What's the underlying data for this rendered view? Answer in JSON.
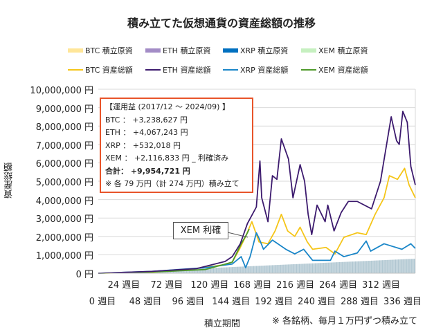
{
  "chart_data": {
    "type": "line",
    "title": "積み立てた仮想通貨の資産総額の推移",
    "xlabel": "積立期間",
    "ylabel": "資産総額",
    "note": "※ 各銘柄、毎月１万円ずつ積み立て",
    "ylim": [
      0,
      10000000
    ],
    "xlim": [
      0,
      355
    ],
    "grid": true,
    "legend_position": "top",
    "y_ticks": [
      "0 円",
      "1,000,000 円",
      "2,000,000 円",
      "3,000,000 円",
      "4,000,000 円",
      "5,000,000 円",
      "6,000,000 円",
      "7,000,000 円",
      "8,000,000 円",
      "9,000,000 円",
      "10,000,000 円"
    ],
    "x_ticks_upper": [
      "24 週目",
      "72 週目",
      "120 週目",
      "168 週目",
      "216 週目",
      "264 週目",
      "312 週目"
    ],
    "x_ticks_lower": [
      "0 週目",
      "48 週目",
      "96 週目",
      "144 週目",
      "192 週目",
      "240 週目",
      "288 週目",
      "336 週目"
    ],
    "legend": {
      "principal": [
        {
          "label": "BTC  積立原資",
          "color": "#ffe699"
        },
        {
          "label": "ETH  積立原資",
          "color": "#a38cc6"
        },
        {
          "label": "XRP  積立原資",
          "color": "#0070c0"
        },
        {
          "label": "XEM  積立原資",
          "color": "#c6f0c0"
        }
      ],
      "total": [
        {
          "label": "BTC  資産総額",
          "color": "#f5c518"
        },
        {
          "label": "ETH  資産総額",
          "color": "#3c1a6e"
        },
        {
          "label": "XRP  資産総額",
          "color": "#1a86c8"
        },
        {
          "label": "XEM  資産総額",
          "color": "#4e9a2a"
        }
      ]
    },
    "principal_series": {
      "color": "#b8cdd6",
      "points": [
        [
          0,
          0
        ],
        [
          170,
          380000
        ],
        [
          355,
          790000
        ]
      ]
    },
    "series": [
      {
        "name": "BTC",
        "color": "#f5c518",
        "points": [
          [
            0,
            0
          ],
          [
            60,
            50000
          ],
          [
            100,
            200000
          ],
          [
            140,
            450000
          ],
          [
            150,
            600000
          ],
          [
            158,
            1300000
          ],
          [
            165,
            2000000
          ],
          [
            172,
            2800000
          ],
          [
            180,
            1700000
          ],
          [
            190,
            1600000
          ],
          [
            198,
            2300000
          ],
          [
            205,
            3200000
          ],
          [
            212,
            2300000
          ],
          [
            220,
            2000000
          ],
          [
            226,
            2500000
          ],
          [
            234,
            1700000
          ],
          [
            240,
            1300000
          ],
          [
            255,
            1400000
          ],
          [
            265,
            1050000
          ],
          [
            275,
            1950000
          ],
          [
            290,
            2200000
          ],
          [
            300,
            2100000
          ],
          [
            310,
            3200000
          ],
          [
            320,
            4100000
          ],
          [
            326,
            5300000
          ],
          [
            335,
            5100000
          ],
          [
            343,
            5700000
          ],
          [
            348,
            4800000
          ],
          [
            355,
            4100000
          ]
        ]
      },
      {
        "name": "ETH",
        "color": "#3c1a6e",
        "points": [
          [
            0,
            0
          ],
          [
            60,
            100000
          ],
          [
            110,
            250000
          ],
          [
            142,
            640000
          ],
          [
            150,
            900000
          ],
          [
            159,
            1600000
          ],
          [
            167,
            2700000
          ],
          [
            177,
            3600000
          ],
          [
            181,
            6100000
          ],
          [
            183,
            4100000
          ],
          [
            190,
            2800000
          ],
          [
            195,
            5300000
          ],
          [
            200,
            5100000
          ],
          [
            205,
            7300000
          ],
          [
            213,
            6200000
          ],
          [
            218,
            4100000
          ],
          [
            226,
            5900000
          ],
          [
            231,
            5000000
          ],
          [
            235,
            3200000
          ],
          [
            239,
            2100000
          ],
          [
            245,
            3700000
          ],
          [
            254,
            2800000
          ],
          [
            257,
            3700000
          ],
          [
            264,
            2300000
          ],
          [
            272,
            3300000
          ],
          [
            280,
            3900000
          ],
          [
            290,
            3900000
          ],
          [
            306,
            3500000
          ],
          [
            316,
            5000000
          ],
          [
            328,
            8500000
          ],
          [
            334,
            7200000
          ],
          [
            337,
            7000000
          ],
          [
            341,
            8800000
          ],
          [
            346,
            8200000
          ],
          [
            350,
            5800000
          ],
          [
            355,
            4800000
          ]
        ]
      },
      {
        "name": "XRP",
        "color": "#1a86c8",
        "points": [
          [
            0,
            0
          ],
          [
            60,
            100000
          ],
          [
            120,
            300000
          ],
          [
            150,
            500000
          ],
          [
            160,
            900000
          ],
          [
            165,
            300000
          ],
          [
            170,
            900000
          ],
          [
            177,
            2200000
          ],
          [
            180,
            1900000
          ],
          [
            185,
            1300000
          ],
          [
            195,
            1800000
          ],
          [
            210,
            1300000
          ],
          [
            220,
            1050000
          ],
          [
            230,
            1300000
          ],
          [
            240,
            700000
          ],
          [
            260,
            700000
          ],
          [
            265,
            1200000
          ],
          [
            275,
            900000
          ],
          [
            290,
            1100000
          ],
          [
            300,
            1750000
          ],
          [
            305,
            1200000
          ],
          [
            320,
            1600000
          ],
          [
            340,
            1300000
          ],
          [
            350,
            1600000
          ],
          [
            355,
            1350000
          ]
        ]
      },
      {
        "name": "XEM",
        "color": "#4e9a2a",
        "points": [
          [
            0,
            0
          ],
          [
            60,
            60000
          ],
          [
            120,
            200000
          ],
          [
            150,
            600000
          ],
          [
            160,
            1600000
          ],
          [
            166,
            2100000
          ],
          [
            169,
            2400000
          ]
        ]
      }
    ],
    "annotation": "XEM 利確"
  },
  "info_box": {
    "heading": "【運用益 (2017/12 ～ 2024/09) 】",
    "btc": "BTC ： +3,238,627 円",
    "eth": "ETH ： +4,067,243 円",
    "xrp": "XRP ： +532,018 円",
    "xem": "XEM ： +2,116,833 円 _ 利確済み",
    "total": "合計： +9,954,721 円",
    "footnote": "※ 各 79 万円（計 274 万円）積み立て"
  }
}
